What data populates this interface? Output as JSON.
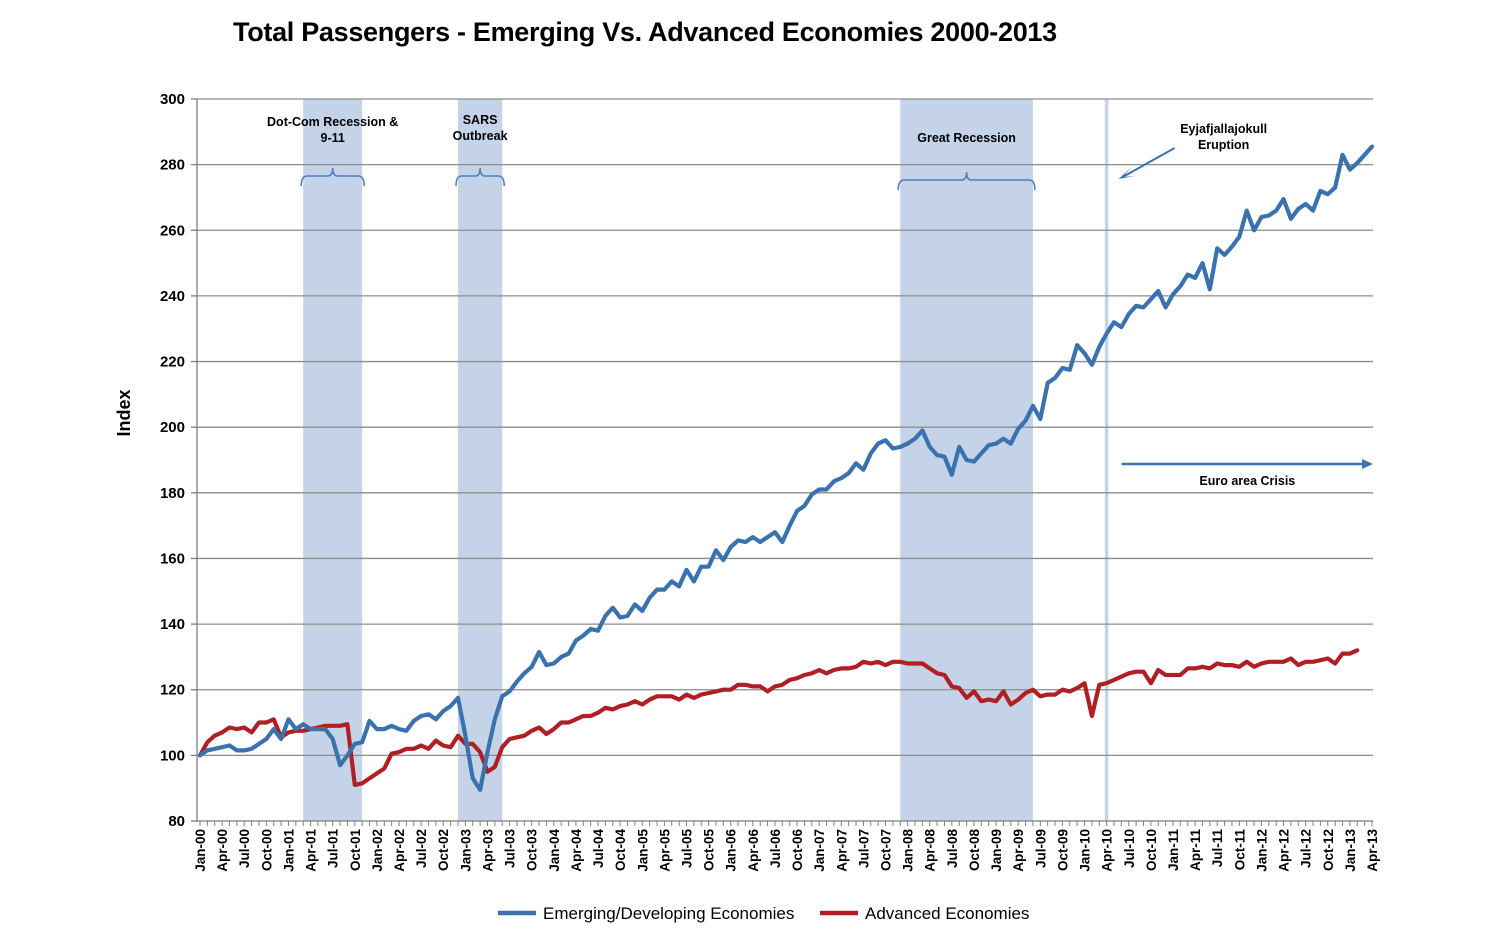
{
  "chart_data": {
    "type": "line",
    "title": "Total Passengers - Emerging Vs. Advanced Economies 2000-2013",
    "xlabel": "",
    "ylabel": "Index",
    "ylim": [
      80,
      300
    ],
    "yticks": [
      80,
      100,
      120,
      140,
      160,
      180,
      200,
      220,
      240,
      260,
      280,
      300
    ],
    "grid": true,
    "legend_position": "bottom",
    "x_start": "Jan-00",
    "x_end": "Jun-13",
    "x_tick_labels": [
      "Jan-00",
      "Apr-00",
      "Jul-00",
      "Oct-00",
      "Jan-01",
      "Apr-01",
      "Jul-01",
      "Oct-01",
      "Jan-02",
      "Apr-02",
      "Jul-02",
      "Oct-02",
      "Jan-03",
      "Apr-03",
      "Jul-03",
      "Oct-03",
      "Jan-04",
      "Apr-04",
      "Jul-04",
      "Oct-04",
      "Jan-05",
      "Apr-05",
      "Jul-05",
      "Oct-05",
      "Jan-06",
      "Apr-06",
      "Jul-06",
      "Oct-06",
      "Jan-07",
      "Apr-07",
      "Jul-07",
      "Oct-07",
      "Jan-08",
      "Apr-08",
      "Jul-08",
      "Oct-08",
      "Jan-09",
      "Apr-09",
      "Jul-09",
      "Oct-09",
      "Jan-10",
      "Apr-10",
      "Jul-10",
      "Oct-10",
      "Jan-11",
      "Apr-11",
      "Jul-11",
      "Oct-11",
      "Jan-12",
      "Apr-12",
      "Jul-12",
      "Oct-12",
      "Jan-13",
      "Apr-13"
    ],
    "series": [
      {
        "name": "Emerging/Developing Economies",
        "color": "#3a72ad",
        "values": [
          100,
          101.5,
          102,
          102.5,
          103,
          101.5,
          101.5,
          102,
          103.5,
          105,
          108,
          105,
          111,
          108,
          109.5,
          108,
          108,
          108,
          105,
          97,
          100,
          103.5,
          104,
          110.5,
          108,
          108,
          109,
          108,
          107.5,
          110.5,
          112,
          112.5,
          111,
          113.5,
          115,
          117.5,
          106,
          93,
          89.5,
          101,
          111,
          118,
          119.5,
          122.5,
          125,
          127,
          131.5,
          127.5,
          128,
          130,
          131,
          135,
          136.5,
          138.5,
          138,
          142.5,
          145,
          142,
          142.5,
          146,
          144,
          148,
          150.5,
          150.5,
          153,
          151.5,
          156.5,
          153,
          157.5,
          157.5,
          162.5,
          159.5,
          163.5,
          165.5,
          165,
          166.5,
          165,
          166.5,
          168,
          165,
          170,
          174.5,
          176,
          179.5,
          181,
          181,
          183.5,
          184.5,
          186,
          189,
          187,
          192,
          195,
          196,
          193.5,
          194,
          195,
          196.5,
          199,
          194,
          191.5,
          191,
          185.5,
          194,
          190,
          189.5,
          192,
          194.5,
          195,
          196.5,
          195,
          199.5,
          202,
          206.5,
          202.5,
          213.5,
          215,
          218,
          217.5,
          225,
          222.5,
          219,
          224.5,
          228.5,
          232,
          230.5,
          234.5,
          237,
          236.5,
          239,
          241.5,
          236.5,
          240.5,
          243,
          246.5,
          245.5,
          250,
          242,
          254.5,
          252.5,
          255,
          258,
          266,
          260,
          264,
          264.5,
          266,
          269.5,
          263.5,
          266.5,
          268,
          266,
          272,
          271,
          273,
          283,
          278.5,
          280.5,
          283,
          285.5
        ]
      },
      {
        "name": "Advanced Economies",
        "color": "#b01f24",
        "values": [
          100,
          104,
          106,
          107,
          108.5,
          108,
          108.5,
          107,
          110,
          110,
          111,
          105.5,
          107,
          107.5,
          107.5,
          108,
          108.5,
          109,
          109,
          109,
          109.5,
          91,
          91.5,
          93,
          94.5,
          96,
          100.5,
          101,
          102,
          102,
          103,
          102,
          104.5,
          103,
          102.5,
          106,
          103.5,
          103.5,
          101,
          95,
          96.5,
          102.5,
          105,
          105.5,
          106,
          107.5,
          108.5,
          106.5,
          108,
          110,
          110,
          111,
          112,
          112,
          113,
          114.5,
          114,
          115,
          115.5,
          116.5,
          115.5,
          117,
          118,
          118,
          118,
          117,
          118.5,
          117.5,
          118.5,
          119,
          119.5,
          120,
          120,
          121.5,
          121.5,
          121,
          121,
          119.5,
          121,
          121.5,
          123,
          123.5,
          124.5,
          125,
          126,
          125,
          126,
          126.5,
          126.5,
          127,
          128.5,
          128,
          128.5,
          127.5,
          128.5,
          128.5,
          128,
          128,
          128,
          126.5,
          125,
          124.5,
          121,
          120.5,
          117.5,
          119.5,
          116.5,
          117,
          116.5,
          119.5,
          115.5,
          117,
          119,
          120,
          118,
          118.5,
          118.5,
          120,
          119.5,
          120.5,
          122,
          112,
          121.5,
          122,
          123,
          124,
          125,
          125.5,
          125.5,
          122,
          126,
          124.5,
          124.5,
          124.5,
          126.5,
          126.5,
          127,
          126.5,
          128,
          127.5,
          127.5,
          127,
          128.5,
          127,
          128,
          128.5,
          128.5,
          128.5,
          129.5,
          127.5,
          128.5,
          128.5,
          129,
          129.5,
          128,
          131,
          131,
          132
        ]
      }
    ],
    "shaded_periods": [
      {
        "label": "Dot-Com Recession & 9-11",
        "label_lines": [
          "Dot-Com Recession &",
          "9-11"
        ],
        "from": "Mar-01",
        "to": "Nov-01"
      },
      {
        "label": "SARS Outbreak",
        "label_lines": [
          "SARS",
          "Outbreak"
        ],
        "from": "Dec-02",
        "to": "Jun-03"
      },
      {
        "label": "Great Recession",
        "label_lines": [
          "Great Recession"
        ],
        "from": "Dec-07",
        "to": "Jun-09"
      }
    ],
    "events": [
      {
        "label": "Eyjafjallajokull Eruption",
        "label_lines": [
          "Eyjafjallajokull",
          "Eruption"
        ],
        "at": "Apr-10"
      }
    ],
    "annotations": [
      {
        "label": "Euro area Crisis",
        "from": "Apr-10",
        "to": "Jun-13"
      }
    ]
  }
}
